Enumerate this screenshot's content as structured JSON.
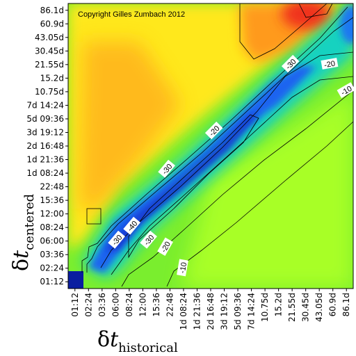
{
  "chart_data": {
    "type": "heatmap",
    "copyright": "Copyright Gilles Zumbach 2012",
    "xlabel": {
      "symbol": "δ",
      "var": "t",
      "sub": "historical"
    },
    "ylabel": {
      "symbol": "δ",
      "var": "t",
      "sub": "centered"
    },
    "x_ticks": [
      "01:12",
      "02:24",
      "03:36",
      "06:00",
      "08:24",
      "12:00",
      "15:36",
      "22:48",
      "1d 08:24",
      "1d 21:36",
      "2d 16:48",
      "3d 19:12",
      "5d 09:36",
      "7d 14:24",
      "10.75d",
      "15.2d",
      "21.55d",
      "30.45d",
      "43.05d",
      "60.9d",
      "86.1d"
    ],
    "y_ticks": [
      "01:12",
      "02:24",
      "03:36",
      "06:00",
      "08:24",
      "12:00",
      "15:36",
      "22:48",
      "1d 08:24",
      "1d 21:36",
      "2d 16:48",
      "3d 19:12",
      "5d 09:36",
      "7d 14:24",
      "10.75d",
      "15.2d",
      "21.55d",
      "30.45d",
      "43.05d",
      "60.9d",
      "86.1d"
    ],
    "contour_labels": [
      "-30",
      "-40",
      "-30",
      "-20",
      "-10",
      "-20",
      "-30",
      "-30",
      "-20",
      "-10",
      "-10"
    ],
    "colors": {
      "low": "#0a1ea0",
      "blue": "#1e5af0",
      "cyan": "#00c8c8",
      "green": "#6ee632",
      "lime": "#a0ff28",
      "yellow": "#ffeb19",
      "orange": "#ffa01e",
      "red": "#f01e14"
    }
  }
}
